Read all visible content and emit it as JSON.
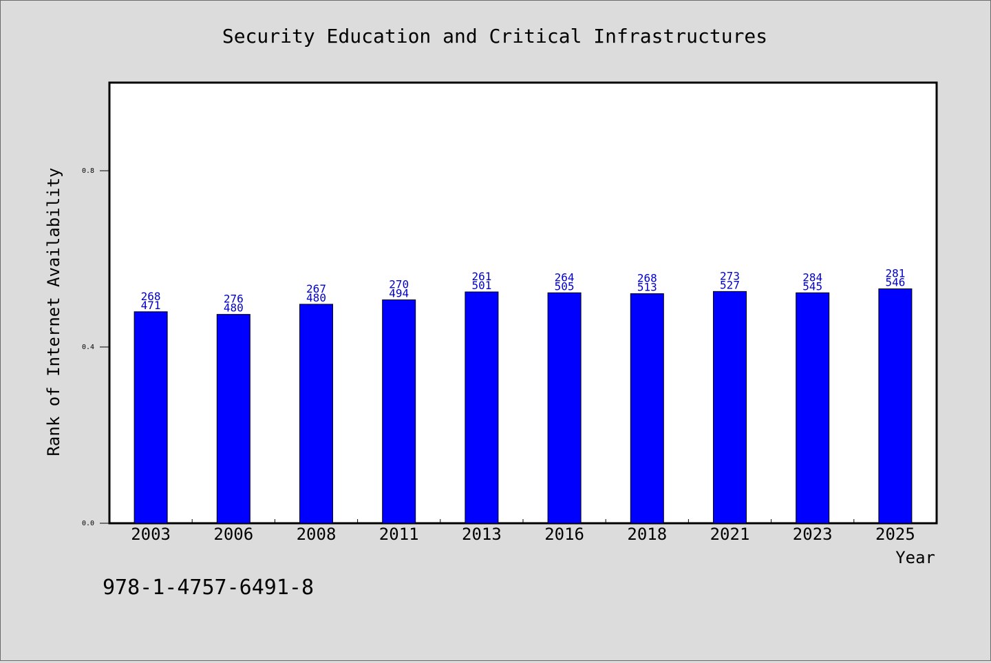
{
  "chart_data": {
    "type": "bar",
    "title": "Security Education and Critical Infrastructures",
    "xlabel": "Year",
    "ylabel": "Rank of Internet Availability",
    "categories": [
      "2003",
      "2006",
      "2008",
      "2011",
      "2013",
      "2016",
      "2018",
      "2021",
      "2023",
      "2025"
    ],
    "values": [
      0.48,
      0.474,
      0.497,
      0.507,
      0.525,
      0.523,
      0.521,
      0.526,
      0.523,
      0.532
    ],
    "data_labels_top": [
      "268",
      "276",
      "267",
      "270",
      "261",
      "264",
      "268",
      "273",
      "284",
      "281"
    ],
    "data_labels_bottom": [
      "471",
      "480",
      "480",
      "494",
      "501",
      "505",
      "513",
      "527",
      "545",
      "546"
    ],
    "ylim": [
      0,
      1.0
    ],
    "yticks": [
      0.0,
      0.4,
      0.8
    ],
    "ytick_labels": [
      "0.0",
      "0.4",
      "0.8"
    ],
    "grid": false,
    "bar_color": "#0000ff",
    "label_color": "#0000cc"
  },
  "footer_code": "978-1-4757-6491-8"
}
